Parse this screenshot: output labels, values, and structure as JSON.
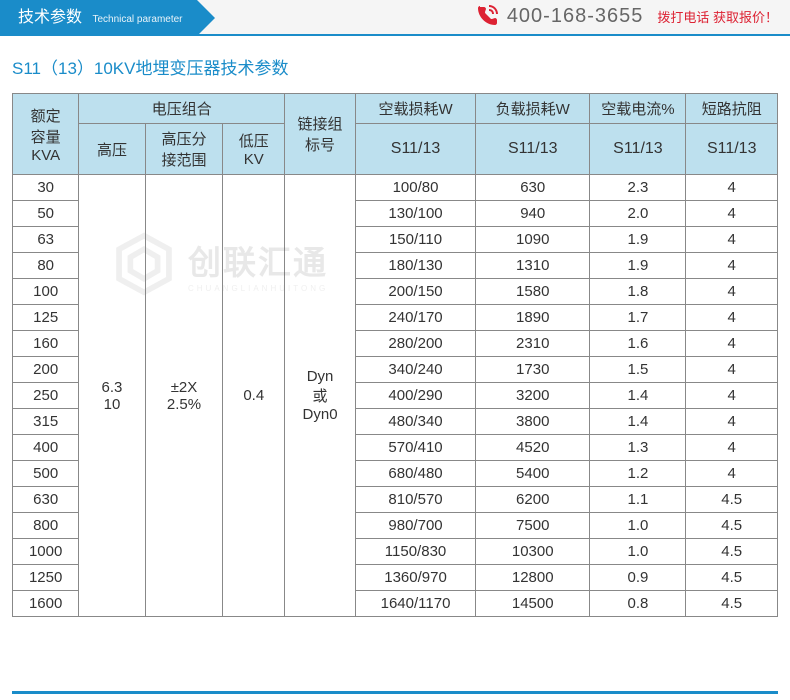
{
  "header": {
    "tab_cn": "技术参数",
    "tab_en": "Technical parameter",
    "phone": "400-168-3655",
    "cta": "拨打电话  获取报价！"
  },
  "title": "S11（13）10KV地埋变压器技术参数",
  "watermark": {
    "name": "创联汇通",
    "sub": "CHUANGLIANHUITONG"
  },
  "table": {
    "colgroups": [
      "额定\n容量\nKVA",
      "电压组合",
      "链接组\n标号",
      "空载损耗W",
      "负载损耗W",
      "空载电流%",
      "短路抗阻"
    ],
    "voltage_sub": [
      "高压",
      "高压分\n接范围",
      "低压\nKV"
    ],
    "model_row": [
      "S11/13",
      "S11/13",
      "S11/13",
      "S11/13"
    ],
    "shared": {
      "hv": "6.3\n10",
      "tap": "±2X\n2.5%",
      "lv": "0.4",
      "conn": "Dyn\n或\nDyn0"
    },
    "rows": [
      {
        "kva": "30",
        "nl": "100/80",
        "ll": "630",
        "cur": "2.3",
        "imp": "4"
      },
      {
        "kva": "50",
        "nl": "130/100",
        "ll": "940",
        "cur": "2.0",
        "imp": "4"
      },
      {
        "kva": "63",
        "nl": "150/110",
        "ll": "1090",
        "cur": "1.9",
        "imp": "4"
      },
      {
        "kva": "80",
        "nl": "180/130",
        "ll": "1310",
        "cur": "1.9",
        "imp": "4"
      },
      {
        "kva": "100",
        "nl": "200/150",
        "ll": "1580",
        "cur": "1.8",
        "imp": "4"
      },
      {
        "kva": "125",
        "nl": "240/170",
        "ll": "1890",
        "cur": "1.7",
        "imp": "4"
      },
      {
        "kva": "160",
        "nl": "280/200",
        "ll": "2310",
        "cur": "1.6",
        "imp": "4"
      },
      {
        "kva": "200",
        "nl": "340/240",
        "ll": "1730",
        "cur": "1.5",
        "imp": "4"
      },
      {
        "kva": "250",
        "nl": "400/290",
        "ll": "3200",
        "cur": "1.4",
        "imp": "4"
      },
      {
        "kva": "315",
        "nl": "480/340",
        "ll": "3800",
        "cur": "1.4",
        "imp": "4"
      },
      {
        "kva": "400",
        "nl": "570/410",
        "ll": "4520",
        "cur": "1.3",
        "imp": "4"
      },
      {
        "kva": "500",
        "nl": "680/480",
        "ll": "5400",
        "cur": "1.2",
        "imp": "4"
      },
      {
        "kva": "630",
        "nl": "810/570",
        "ll": "6200",
        "cur": "1.1",
        "imp": "4.5"
      },
      {
        "kva": "800",
        "nl": "980/700",
        "ll": "7500",
        "cur": "1.0",
        "imp": "4.5"
      },
      {
        "kva": "1000",
        "nl": "1150/830",
        "ll": "10300",
        "cur": "1.0",
        "imp": "4.5"
      },
      {
        "kva": "1250",
        "nl": "1360/970",
        "ll": "12800",
        "cur": "0.9",
        "imp": "4.5"
      },
      {
        "kva": "1600",
        "nl": "1640/1170",
        "ll": "14500",
        "cur": "0.8",
        "imp": "4.5"
      }
    ]
  },
  "style": {
    "accent": "#1a8cc9",
    "header_bg": "#bde0ee",
    "border": "#888888",
    "cta_color": "#dd2233",
    "font_size_body": 15,
    "font_size_title": 17
  }
}
